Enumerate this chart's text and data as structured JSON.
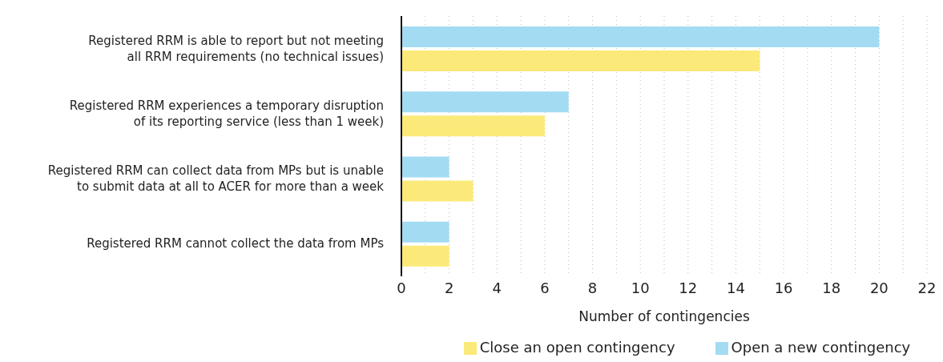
{
  "chart_data": {
    "type": "bar",
    "orientation": "horizontal",
    "categories": [
      "Registered RRM is able to report but not meeting\nall RRM requirements (no technical issues)",
      "Registered RRM experiences a temporary disruption\nof its reporting service (less than 1 week)",
      "Registered RRM can collect data from MPs but is unable\nto submit data at all to ACER for more than a week",
      "Registered RRM cannot collect the data from MPs"
    ],
    "series": [
      {
        "name": "Open a new contingency",
        "color": "#a3dcf2",
        "values": [
          20,
          7,
          2,
          2
        ]
      },
      {
        "name": "Close an open contingency",
        "color": "#fbe97a",
        "values": [
          15,
          6,
          3,
          2
        ]
      }
    ],
    "xlabel": "Number of contingencies",
    "xlim": [
      0,
      22
    ],
    "xticks": [
      0,
      {
        "value": 1,
        "label": null
      },
      2,
      {
        "value": 3,
        "label": null
      },
      4,
      {
        "value": 5,
        "label": null
      },
      6,
      {
        "value": 7,
        "label": null
      },
      8,
      {
        "value": 9,
        "label": null
      },
      10,
      {
        "value": 11,
        "label": null
      },
      12,
      {
        "value": 13,
        "label": null
      },
      14,
      {
        "value": 15,
        "label": null
      },
      16,
      {
        "value": 17,
        "label": null
      },
      18,
      {
        "value": 19,
        "label": null
      },
      20,
      {
        "value": 21,
        "label": null
      },
      22
    ],
    "grid": "x",
    "legend": "bottom"
  }
}
